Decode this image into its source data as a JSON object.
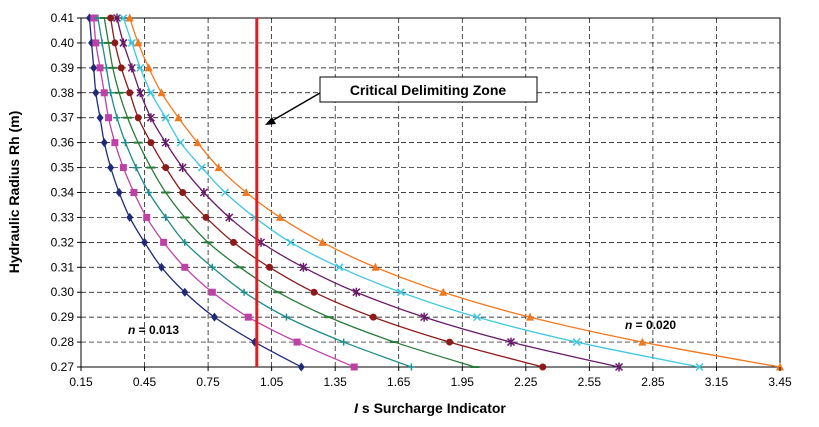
{
  "chart_data": {
    "type": "line",
    "xlabel_italic": "I",
    "xlabel_rest": " s Surcharge Indicator",
    "ylabel": "Hydraulic Radius Rh (m)",
    "xlim": [
      0.15,
      3.45
    ],
    "ylim": [
      0.27,
      0.41
    ],
    "xticks": [
      0.15,
      0.45,
      0.75,
      1.05,
      1.35,
      1.65,
      1.95,
      2.25,
      2.55,
      2.85,
      3.15,
      3.45
    ],
    "xtick_labels": [
      "0.15",
      "0.45",
      "0.75",
      "1.05",
      "1.35",
      "1.65",
      "1.95",
      "2.25",
      "2.55",
      "2.85",
      "3.15",
      "3.45"
    ],
    "yticks": [
      0.27,
      0.28,
      0.29,
      0.3,
      0.31,
      0.32,
      0.33,
      0.34,
      0.35,
      0.36,
      0.37,
      0.38,
      0.39,
      0.4,
      0.41
    ],
    "ytick_labels": [
      "0.27",
      "0.28",
      "0.29",
      "0.30",
      "0.31",
      "0.32",
      "0.33",
      "0.34",
      "0.35",
      "0.36",
      "0.37",
      "0.38",
      "0.39",
      "0.40",
      "0.41"
    ],
    "grid": true,
    "y": [
      0.27,
      0.28,
      0.29,
      0.3,
      0.31,
      0.32,
      0.33,
      0.34,
      0.35,
      0.36,
      0.37,
      0.38,
      0.39,
      0.4,
      0.41
    ],
    "series": [
      {
        "color": "#1f2a78",
        "marker": "diamond",
        "x": [
          1.19,
          0.97,
          0.78,
          0.64,
          0.53,
          0.45,
          0.38,
          0.33,
          0.29,
          0.26,
          0.24,
          0.22,
          0.21,
          0.2,
          0.19
        ]
      },
      {
        "color": "#c040a8",
        "marker": "square",
        "x": [
          1.44,
          1.17,
          0.94,
          0.77,
          0.64,
          0.54,
          0.46,
          0.4,
          0.35,
          0.31,
          0.28,
          0.26,
          0.24,
          0.22,
          0.21
        ]
      },
      {
        "color": "#1e8c8c",
        "marker": "plus",
        "x": [
          1.71,
          1.39,
          1.12,
          0.92,
          0.77,
          0.64,
          0.55,
          0.47,
          0.41,
          0.36,
          0.32,
          0.29,
          0.27,
          0.25,
          0.23
        ]
      },
      {
        "color": "#2a7a3a",
        "marker": "dash",
        "x": [
          2.01,
          1.63,
          1.32,
          1.08,
          0.9,
          0.75,
          0.64,
          0.55,
          0.48,
          0.42,
          0.37,
          0.33,
          0.3,
          0.28,
          0.26
        ]
      },
      {
        "color": "#8c1a1a",
        "marker": "circle",
        "x": [
          2.33,
          1.89,
          1.53,
          1.25,
          1.04,
          0.87,
          0.74,
          0.63,
          0.55,
          0.48,
          0.42,
          0.38,
          0.34,
          0.31,
          0.29
        ]
      },
      {
        "color": "#6a1a6a",
        "marker": "star",
        "x": [
          2.69,
          2.18,
          1.77,
          1.45,
          1.2,
          1.0,
          0.85,
          0.73,
          0.63,
          0.55,
          0.48,
          0.43,
          0.39,
          0.35,
          0.32
        ]
      },
      {
        "color": "#40c8e0",
        "marker": "x",
        "x": [
          3.07,
          2.49,
          2.02,
          1.66,
          1.37,
          1.14,
          0.97,
          0.83,
          0.72,
          0.62,
          0.55,
          0.48,
          0.43,
          0.39,
          0.35
        ]
      },
      {
        "color": "#f07820",
        "marker": "triangle",
        "x": [
          3.45,
          2.8,
          2.27,
          1.86,
          1.54,
          1.29,
          1.09,
          0.93,
          0.8,
          0.7,
          0.61,
          0.53,
          0.47,
          0.42,
          0.38
        ]
      }
    ],
    "critical_line": {
      "x": 0.98,
      "color": "#e02020"
    },
    "annotations": {
      "callout": "Critical Delimiting Zone",
      "n_low_prefix": "n",
      "n_low_value": " = 0.013",
      "n_high_prefix": "n",
      "n_high_value": " = 0.020"
    }
  }
}
